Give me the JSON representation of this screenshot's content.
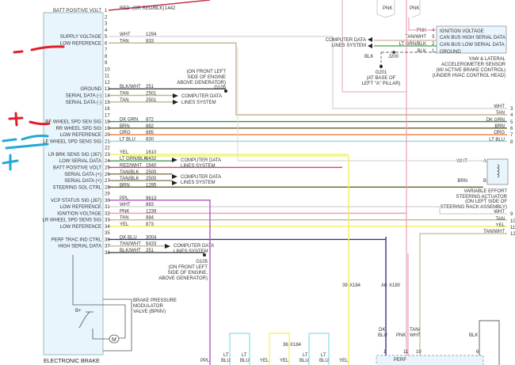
{
  "module": {
    "name": "ELECTRONIC BRAKE",
    "pins": [
      {
        "pin": "1",
        "label": "BATT POSITIVE VOLT",
        "wire": "RED",
        "alt": "(OR RED/BLK)",
        "circuit": "1442"
      },
      {
        "pin": "2",
        "label": "",
        "wire": "",
        "circuit": ""
      },
      {
        "pin": "3",
        "label": "",
        "wire": "",
        "circuit": ""
      },
      {
        "pin": "4",
        "label": "",
        "wire": "",
        "circuit": ""
      },
      {
        "pin": "5",
        "label": "SUPPLY VOLTAGE",
        "wire": "WHT",
        "circuit": "1294"
      },
      {
        "pin": "6",
        "label": "LOW REFERENCE",
        "wire": "TAN",
        "circuit": "833"
      },
      {
        "pin": "7",
        "label": "",
        "wire": "",
        "circuit": ""
      },
      {
        "pin": "8",
        "label": "",
        "wire": "",
        "circuit": ""
      },
      {
        "pin": "9",
        "label": "",
        "wire": "",
        "circuit": ""
      },
      {
        "pin": "10",
        "label": "",
        "wire": "",
        "circuit": ""
      },
      {
        "pin": "11",
        "label": "",
        "wire": "",
        "circuit": ""
      },
      {
        "pin": "12",
        "label": "",
        "wire": "",
        "circuit": ""
      },
      {
        "pin": "13",
        "label": "GROUND",
        "wire": "BLK/WHT",
        "circuit": "251"
      },
      {
        "pin": "14",
        "label": "SERIAL DATA (-)",
        "wire": "TAN",
        "circuit": "2501"
      },
      {
        "pin": "15",
        "label": "SERIAL DATA (-)",
        "wire": "TAN",
        "circuit": "2501"
      },
      {
        "pin": "16",
        "label": "",
        "wire": "",
        "circuit": ""
      },
      {
        "pin": "17",
        "label": "",
        "wire": "",
        "circuit": ""
      },
      {
        "pin": "18",
        "label": "RF WHEEL SPD SEN SIG",
        "wire": "DK GRN",
        "circuit": "872"
      },
      {
        "pin": "19",
        "label": "RR WHEEL SPD SIG",
        "wire": "BRN",
        "circuit": "882"
      },
      {
        "pin": "20",
        "label": "LOW REFERENCE",
        "wire": "ORG",
        "circuit": "885"
      },
      {
        "pin": "21",
        "label": "LF WHEEL SPD SENS SIG",
        "wire": "LT BLU",
        "circuit": "830"
      },
      {
        "pin": "22",
        "label": "",
        "wire": "",
        "circuit": ""
      },
      {
        "pin": "23",
        "label": "LR BRK SENS SIG (J67)",
        "wire": "YEL",
        "circuit": "1610"
      },
      {
        "pin": "24",
        "label": "LOW SERIAL DATA",
        "wire": "LT GRN/BLK",
        "circuit": "6432"
      },
      {
        "pin": "25",
        "label": "BATT POSITIVE VOLT",
        "wire": "RED/WHT",
        "circuit": "1640"
      },
      {
        "pin": "26",
        "label": "SERIAL DATA (+)",
        "wire": "TAN/BLK",
        "circuit": "2500"
      },
      {
        "pin": "27",
        "label": "SERIAL DATA (+)",
        "wire": "TAN/BLK",
        "circuit": "2500"
      },
      {
        "pin": "28",
        "label": "STEERING SOL CTRL",
        "wire": "BRN",
        "circuit": "1295"
      },
      {
        "pin": "29",
        "label": "",
        "wire": "",
        "circuit": ""
      },
      {
        "pin": "30",
        "label": "VCP STATUS SIG (J67)",
        "wire": "PPL",
        "circuit": "9613"
      },
      {
        "pin": "31",
        "label": "LOW REFERENCE",
        "wire": "WHT",
        "circuit": "883"
      },
      {
        "pin": "32",
        "label": "IGNITION VOLTAGE",
        "wire": "PNK",
        "circuit": "1239"
      },
      {
        "pin": "33",
        "label": "LR WHEEL SPD SENS SIG",
        "wire": "TAN",
        "circuit": "884"
      },
      {
        "pin": "34",
        "label": "LOW REFERENCE",
        "wire": "YEL",
        "circuit": "873"
      },
      {
        "pin": "35",
        "label": "",
        "wire": "",
        "circuit": ""
      },
      {
        "pin": "36",
        "label": "PERF TRAC IND CTRL",
        "wire": "DK BLU",
        "circuit": "3004"
      },
      {
        "pin": "37",
        "label": "HIGH SERIAL DATA",
        "wire": "TAN/WHT",
        "circuit": "6433"
      },
      {
        "pin": "38",
        "label": "",
        "wire": "BLK/WHT",
        "circuit": "251"
      }
    ]
  },
  "wire_colors": {
    "RED": "#c4324e",
    "WHT": "#d8d8d8",
    "TAN": "#c2b48a",
    "BLK/WHT": "#555555",
    "DK GRN": "#3f8f4f",
    "BRN": "#6a5a28",
    "ORG": "#ec8a4a",
    "LT BLU": "#86dcea",
    "YEL": "#f2ee5e",
    "LT GRN/BLK": "#4c9c50",
    "RED/WHT": "#d0446a",
    "TAN/BLK": "#8a7c5a",
    "PPL": "#b454c4",
    "PNK": "#eaa0bc",
    "DK BLU": "#34348a",
    "TAN/WHT": "#c6b890"
  },
  "computer_data": "COMPUTER DATA",
  "lines_system": "LINES SYSTEM",
  "g105": {
    "name": "G105",
    "loc1": "(ON FRONT LEFT",
    "loc2": "SIDE OF ENGINE",
    "loc3": "ABOVE GENERATOR)",
    "loc3b": "ABOVE GENERATOR)",
    "loc2b": "SIDE OF ENGINE,"
  },
  "bpmv": {
    "l1": "BRAKE PRESSURE",
    "l2": "MODULATOR",
    "l3": "VALVE (BPMV)",
    "bplus": "B+",
    "motor": "M"
  },
  "yaw_sensor": {
    "pins": [
      {
        "pin": "4",
        "label": "IGNITION VOLTAGE",
        "wire": "PNK"
      },
      {
        "pin": "3",
        "label": "CAN BUS HIGH SERIAL DATA",
        "wire": "TAN/WHT"
      },
      {
        "pin": "2",
        "label": "CAN BUS LOW SERIAL DATA",
        "wire": "LT GRN/BLK"
      },
      {
        "pin": "1",
        "label": "GROUND",
        "wire": "BLK"
      }
    ],
    "l1": "YAW & LATERAL",
    "l2": "ACCELEROMETER SENSOR",
    "l3": "(W/ ACTIVE BRAKE CONTROL)",
    "l4": "(UNDER HVAC CONTROL HEAD)",
    "top_pnk1": "PNK",
    "top_pnk2": "PNK",
    "blk": "BLK",
    "j200": "J200",
    "g201": "G201",
    "g201_l1": "(AT BASE OF",
    "g201_l2": "LEFT \"A\" PILLAR)"
  },
  "right_edge": [
    {
      "wire": "WHT",
      "pin": "3"
    },
    {
      "wire": "TAN",
      "pin": "4"
    },
    {
      "wire": "DK GRN",
      "pin": "5"
    },
    {
      "wire": "BRN",
      "pin": "6"
    },
    {
      "wire": "ORG",
      "pin": "7"
    },
    {
      "wire": "LT BLU",
      "pin": "8"
    },
    {
      "wire": "WHT",
      "pin": "9"
    },
    {
      "wire": "TAN",
      "pin": "10"
    },
    {
      "wire": "YEL",
      "pin": "11"
    },
    {
      "wire": "TAN/WHT",
      "pin": "12"
    }
  ],
  "steering_actuator": {
    "wa": "WHT",
    "pa": "A",
    "wb": "BRN",
    "pb": "B",
    "l1": "VARIABLE EFFORT",
    "l2": "STEERING ACTUATOR",
    "l3": "(ON LEFT SIDE OF",
    "l4": "STEERING RACK ASSEMBLY)"
  },
  "connectors": {
    "c39": "39",
    "x184": "X184",
    "a6": "A6",
    "x180": "X180",
    "c36": "36",
    "x184b": "X184"
  },
  "bottom_labels": {
    "ppl": "PPL",
    "ltblu": "LT",
    "blu": "BLU",
    "yel": "YEL",
    "dk": "DK",
    "pnk": "PNK",
    "tanwht1": "TAN/",
    "tanwht2": "WHT",
    "blk": "BLK",
    "p1": "1",
    "p11": "11",
    "p10": "10",
    "p6": "6",
    "perf": "PERF",
    "trac": "TRAC"
  },
  "annotations_color": {
    "red": "#e0202a",
    "cyan": "#22a8d8"
  }
}
